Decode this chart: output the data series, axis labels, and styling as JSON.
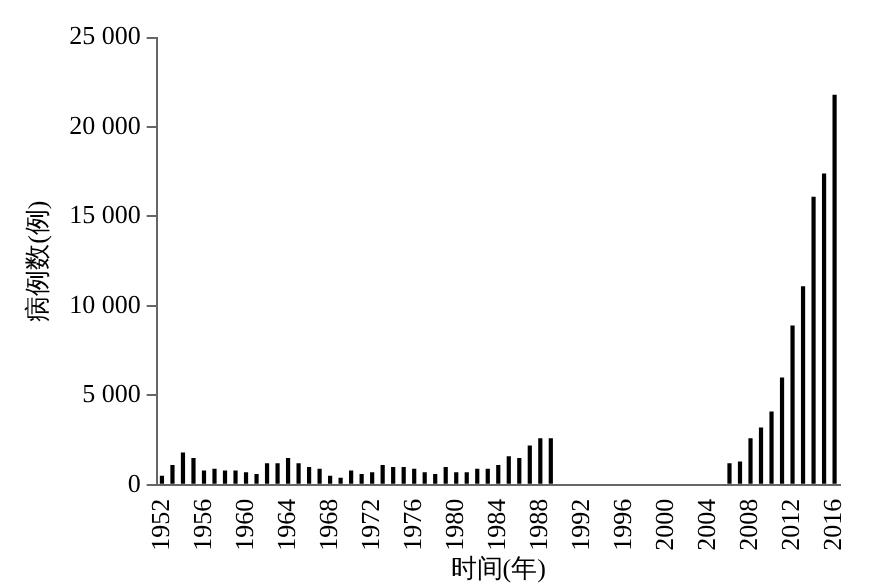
{
  "chart_data": {
    "type": "bar",
    "xlabel": "时间(年)",
    "ylabel": "病例数(例)",
    "categories": [
      "1952",
      null,
      null,
      null,
      "1956",
      null,
      null,
      null,
      "1960",
      null,
      null,
      null,
      "1964",
      null,
      null,
      null,
      "1968",
      null,
      null,
      null,
      "1972",
      null,
      null,
      null,
      "1976",
      null,
      null,
      null,
      "1980",
      null,
      null,
      null,
      "1984",
      null,
      null,
      null,
      "1988",
      null,
      null,
      null,
      "1992",
      null,
      null,
      null,
      "1996",
      null,
      null,
      null,
      "2000",
      null,
      null,
      null,
      "2004",
      null,
      null,
      null,
      "2008",
      null,
      null,
      null,
      "2012",
      null,
      null,
      null,
      "2016"
    ],
    "values": [
      500,
      1100,
      1800,
      1500,
      800,
      900,
      800,
      800,
      700,
      600,
      1200,
      1200,
      1500,
      1200,
      1000,
      900,
      500,
      400,
      800,
      600,
      700,
      1100,
      1000,
      1000,
      900,
      700,
      600,
      1000,
      700,
      700,
      900,
      900,
      1100,
      1600,
      1500,
      2200,
      2600,
      2600,
      0,
      0,
      0,
      0,
      0,
      0,
      0,
      0,
      0,
      0,
      0,
      0,
      0,
      0,
      0,
      0,
      1200,
      1300,
      2600,
      3200,
      4100,
      6000,
      8900,
      11100,
      16100,
      17400,
      21800
    ],
    "color": "#000000",
    "ylim": [
      0,
      25000
    ],
    "yticks": [
      0,
      {
        "value": 5000,
        "label": "5 000"
      },
      {
        "value": 10000,
        "label": "10 000"
      },
      {
        "value": 15000,
        "label": "15 000"
      },
      {
        "value": 20000,
        "label": "20 000"
      },
      {
        "value": 25000,
        "label": "25 000"
      }
    ],
    "grid": false,
    "legend": false
  }
}
